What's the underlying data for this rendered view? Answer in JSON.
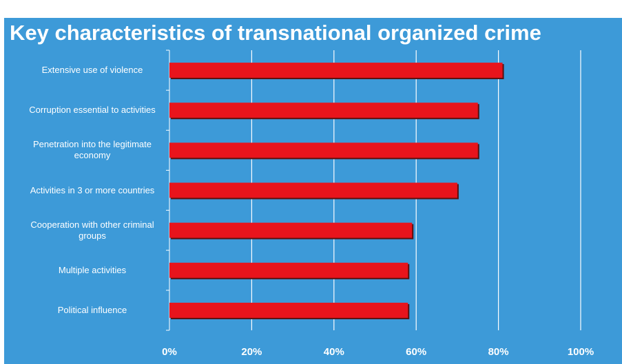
{
  "chart_data": {
    "type": "bar",
    "orientation": "horizontal",
    "title": "Key characteristics of transnational organized crime",
    "categories": [
      "Extensive use of violence",
      "Corruption essential to activities",
      "Penetration into the legitimate economy",
      "Activities in 3 or more countries",
      "Cooperation with other criminal groups",
      "Multiple activities",
      "Political influence"
    ],
    "values": [
      81,
      75,
      75,
      70,
      59,
      58,
      58
    ],
    "color": "#e8141c",
    "xlim": [
      0,
      100
    ],
    "xticks": [
      {
        "value": 0,
        "label": "0%"
      },
      {
        "value": 20,
        "label": "20%"
      },
      {
        "value": 40,
        "label": "40%"
      },
      {
        "value": 60,
        "label": "60%"
      },
      {
        "value": 80,
        "label": "80%"
      },
      {
        "value": 100,
        "label": "100%"
      }
    ],
    "grid": true
  }
}
